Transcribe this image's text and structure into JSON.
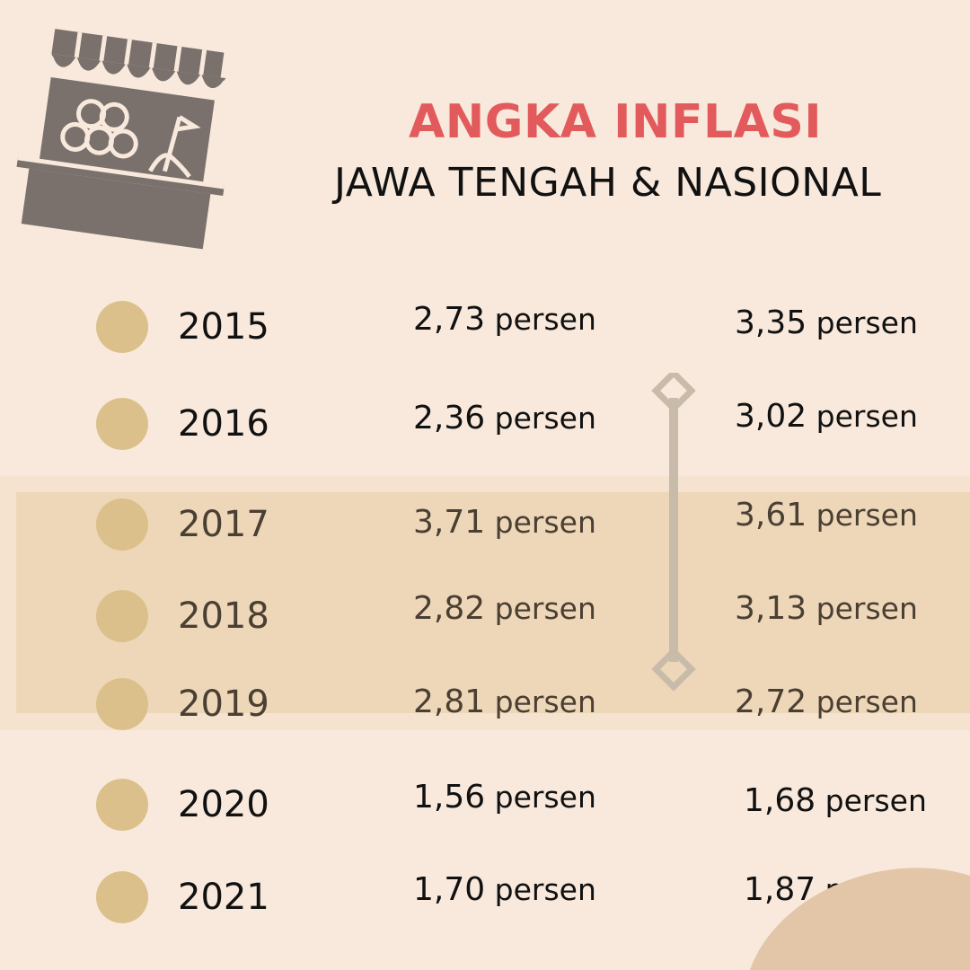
{
  "title": {
    "main": "ANGKA INFLASI",
    "sub": "JAWA TENGAH & NASIONAL"
  },
  "illustration": {
    "icon": "market-stall-icon",
    "color": "#7a716c"
  },
  "colors": {
    "background": "#f8e9dc",
    "title_accent": "#e25a5c",
    "dot": "#dcc08b",
    "highlight_band": "#eddcbd",
    "corner_shape": "#e3c6a8"
  },
  "rows": [
    {
      "year": "2015",
      "jateng_num": "2,73",
      "jateng_unit": " persen",
      "nasional_num": "3,35",
      "nasional_unit": " persen"
    },
    {
      "year": "2016",
      "jateng_num": "2,36",
      "jateng_unit": " persen",
      "nasional_num": "3,02",
      "nasional_unit": " persen"
    },
    {
      "year": "2017",
      "jateng_num": "3,71",
      "jateng_unit": " persen",
      "nasional_num": "3,61",
      "nasional_unit": " persen"
    },
    {
      "year": "2018",
      "jateng_num": "2,82",
      "jateng_unit": " persen",
      "nasional_num": "3,13",
      "nasional_unit": " persen"
    },
    {
      "year": "2019",
      "jateng_num": "2,81",
      "jateng_unit": " persen",
      "nasional_num": "2,72",
      "nasional_unit": " persen"
    },
    {
      "year": "2020",
      "jateng_num": "1,56",
      "jateng_unit": " persen",
      "nasional_num": "1,68",
      "nasional_unit": " persen"
    },
    {
      "year": "2021",
      "jateng_num": "1,70",
      "jateng_unit": " persen",
      "nasional_num": "1,87",
      "nasional_unit": " persen"
    }
  ]
}
